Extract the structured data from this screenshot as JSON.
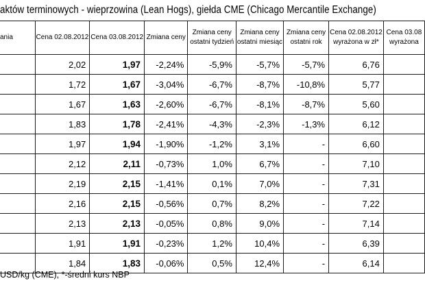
{
  "title": "aktów terminowych - wieprzowina (Lean Hogs), giełda CME (Chicago Mercantile Exchange)",
  "headers": [
    [
      "ania"
    ],
    [
      "Cena 02.08.2012"
    ],
    [
      "Cena 03.08.2012"
    ],
    [
      "Zmiana ceny"
    ],
    [
      "Zmiana ceny",
      "ostatni tydzień"
    ],
    [
      "Zmiana ceny",
      "ostatni miesiąc"
    ],
    [
      "Zmiana ceny",
      "ostatni rok"
    ],
    [
      "Cena 02.08.2012",
      "wyrażona w zł*"
    ],
    [
      "Cena 03.08",
      "wyrażona"
    ]
  ],
  "rows": [
    [
      "",
      "2,02",
      "1,97",
      "-2,24%",
      "-5,9%",
      "-5,7%",
      "-5,7%",
      "6,76",
      ""
    ],
    [
      "",
      "1,72",
      "1,67",
      "-3,04%",
      "-6,7%",
      "-8,7%",
      "-10,8%",
      "5,77",
      ""
    ],
    [
      "",
      "1,67",
      "1,63",
      "-2,60%",
      "-6,7%",
      "-8,1%",
      "-8,7%",
      "5,60",
      ""
    ],
    [
      "",
      "1,83",
      "1,78",
      "-2,41%",
      "-4,3%",
      "-2,3%",
      "-1,3%",
      "6,12",
      ""
    ],
    [
      "",
      "1,97",
      "1,94",
      "-1,90%",
      "-1,2%",
      "3,1%",
      "-",
      "6,60",
      ""
    ],
    [
      "",
      "2,12",
      "2,11",
      "-0,73%",
      "1,0%",
      "6,7%",
      "-",
      "7,10",
      ""
    ],
    [
      "",
      "2,19",
      "2,15",
      "-1,41%",
      "0,1%",
      "7,0%",
      "-",
      "7,31",
      ""
    ],
    [
      "",
      "2,16",
      "2,15",
      "-0,56%",
      "0,7%",
      "8,2%",
      "-",
      "7,22",
      ""
    ],
    [
      "",
      "2,13",
      "2,13",
      "-0,05%",
      "0,8%",
      "9,0%",
      "-",
      "7,14",
      ""
    ],
    [
      "",
      "1,91",
      "1,91",
      "-0,23%",
      "1,2%",
      "10,4%",
      "-",
      "6,39",
      ""
    ],
    [
      "",
      "1,84",
      "1,83",
      "-0,06%",
      "0,5%",
      "12,4%",
      "-",
      "6,14",
      ""
    ]
  ],
  "footer": "USD/kg (CME), *-średni kurs NBP"
}
